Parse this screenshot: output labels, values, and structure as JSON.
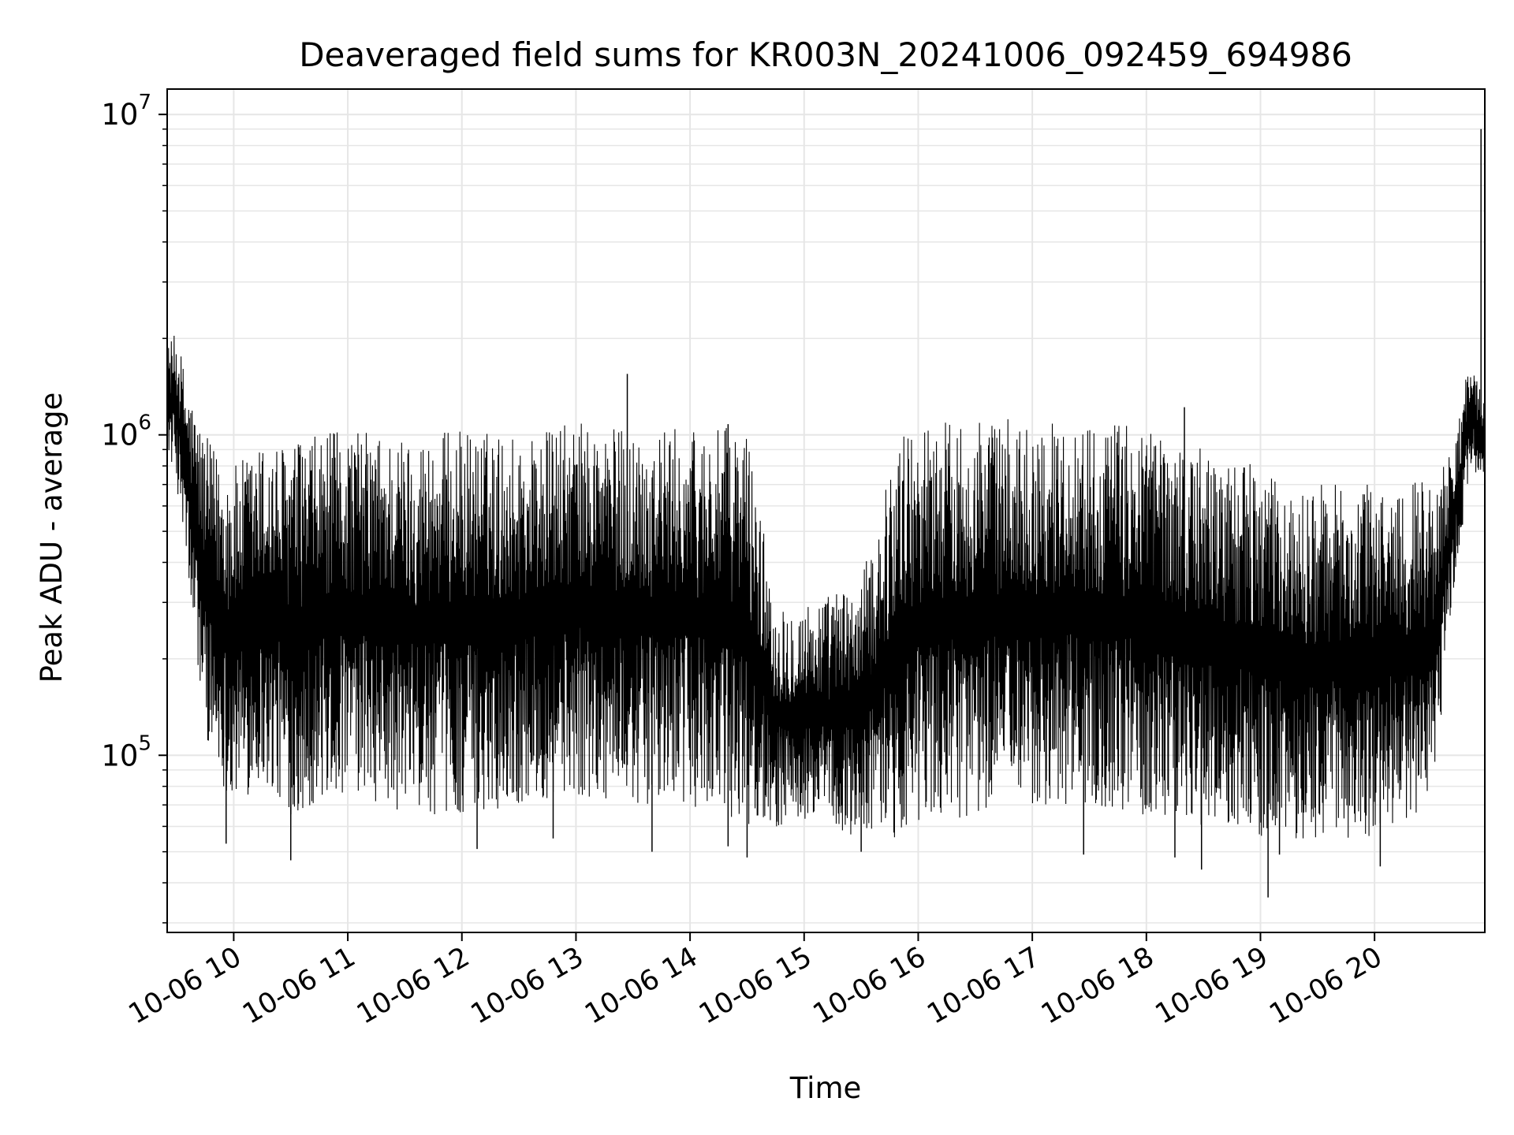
{
  "chart_data": {
    "type": "line",
    "title": "Deaveraged field sums for KR003N_20241006_092459_694986",
    "xlabel": "Time",
    "ylabel": "Peak ADU - average",
    "y_scale": "log",
    "ylim": [
      28000,
      12000000
    ],
    "xlim": [
      "2024-10-06T09:25",
      "2024-10-06T20:58"
    ],
    "grid": true,
    "line_color": "#000000",
    "grid_color": "#e6e6e6",
    "x_ticks": [
      {
        "t": "2024-10-06T10:00",
        "label": "10-06 10"
      },
      {
        "t": "2024-10-06T11:00",
        "label": "10-06 11"
      },
      {
        "t": "2024-10-06T12:00",
        "label": "10-06 12"
      },
      {
        "t": "2024-10-06T13:00",
        "label": "10-06 13"
      },
      {
        "t": "2024-10-06T14:00",
        "label": "10-06 14"
      },
      {
        "t": "2024-10-06T15:00",
        "label": "10-06 15"
      },
      {
        "t": "2024-10-06T16:00",
        "label": "10-06 16"
      },
      {
        "t": "2024-10-06T17:00",
        "label": "10-06 17"
      },
      {
        "t": "2024-10-06T18:00",
        "label": "10-06 18"
      },
      {
        "t": "2024-10-06T19:00",
        "label": "10-06 19"
      },
      {
        "t": "2024-10-06T20:00",
        "label": "10-06 20"
      }
    ],
    "y_ticks": [
      {
        "value": 100000,
        "base": "10",
        "exp": "5"
      },
      {
        "value": 1000000,
        "base": "10",
        "exp": "6"
      },
      {
        "value": 10000000,
        "base": "10",
        "exp": "7"
      }
    ],
    "series": [
      {
        "envelope": [
          {
            "t": "2024-10-06T09:25",
            "low": 900000,
            "high": 1900000
          },
          {
            "t": "2024-10-06T09:30",
            "low": 700000,
            "high": 2100000
          },
          {
            "t": "2024-10-06T09:35",
            "low": 400000,
            "high": 1500000
          },
          {
            "t": "2024-10-06T09:40",
            "low": 200000,
            "high": 1200000
          },
          {
            "t": "2024-10-06T09:45",
            "low": 120000,
            "high": 1000000
          },
          {
            "t": "2024-10-06T09:50",
            "low": 90000,
            "high": 900000
          },
          {
            "t": "2024-10-06T10:00",
            "low": 70000,
            "high": 800000
          },
          {
            "t": "2024-10-06T10:15",
            "low": 80000,
            "high": 950000
          },
          {
            "t": "2024-10-06T10:30",
            "low": 65000,
            "high": 950000
          },
          {
            "t": "2024-10-06T10:45",
            "low": 70000,
            "high": 1000000
          },
          {
            "t": "2024-10-06T11:00",
            "low": 75000,
            "high": 1050000
          },
          {
            "t": "2024-10-06T11:30",
            "low": 65000,
            "high": 1000000
          },
          {
            "t": "2024-10-06T12:00",
            "low": 65000,
            "high": 1050000
          },
          {
            "t": "2024-10-06T12:30",
            "low": 70000,
            "high": 1000000
          },
          {
            "t": "2024-10-06T13:00",
            "low": 75000,
            "high": 1100000
          },
          {
            "t": "2024-10-06T13:30",
            "low": 70000,
            "high": 1050000
          },
          {
            "t": "2024-10-06T14:00",
            "low": 70000,
            "high": 1050000
          },
          {
            "t": "2024-10-06T14:30",
            "low": 60000,
            "high": 1050000
          },
          {
            "t": "2024-10-06T14:45",
            "low": 60000,
            "high": 300000
          },
          {
            "t": "2024-10-06T15:00",
            "low": 60000,
            "high": 300000
          },
          {
            "t": "2024-10-06T15:30",
            "low": 55000,
            "high": 350000
          },
          {
            "t": "2024-10-06T15:50",
            "low": 55000,
            "high": 1000000
          },
          {
            "t": "2024-10-06T16:00",
            "low": 60000,
            "high": 1100000
          },
          {
            "t": "2024-10-06T16:30",
            "low": 65000,
            "high": 1150000
          },
          {
            "t": "2024-10-06T17:00",
            "low": 70000,
            "high": 1100000
          },
          {
            "t": "2024-10-06T17:30",
            "low": 70000,
            "high": 1100000
          },
          {
            "t": "2024-10-06T18:00",
            "low": 65000,
            "high": 1100000
          },
          {
            "t": "2024-10-06T18:30",
            "low": 60000,
            "high": 900000
          },
          {
            "t": "2024-10-06T19:00",
            "low": 55000,
            "high": 800000
          },
          {
            "t": "2024-10-06T19:15",
            "low": 55000,
            "high": 650000
          },
          {
            "t": "2024-10-06T19:30",
            "low": 55000,
            "high": 700000
          },
          {
            "t": "2024-10-06T20:00",
            "low": 55000,
            "high": 700000
          },
          {
            "t": "2024-10-06T20:30",
            "low": 65000,
            "high": 750000
          },
          {
            "t": "2024-10-06T20:40",
            "low": 250000,
            "high": 900000
          },
          {
            "t": "2024-10-06T20:50",
            "low": 800000,
            "high": 1700000
          },
          {
            "t": "2024-10-06T20:58",
            "low": 650000,
            "high": 1300000
          }
        ],
        "spikes": [
          {
            "t": "2024-10-06T09:56",
            "y": 53000
          },
          {
            "t": "2024-10-06T10:30",
            "y": 47000
          },
          {
            "t": "2024-10-06T12:08",
            "y": 51000
          },
          {
            "t": "2024-10-06T12:48",
            "y": 55000
          },
          {
            "t": "2024-10-06T13:27",
            "y": 1550000
          },
          {
            "t": "2024-10-06T13:40",
            "y": 50000
          },
          {
            "t": "2024-10-06T14:20",
            "y": 52000
          },
          {
            "t": "2024-10-06T14:20",
            "y": 1080000
          },
          {
            "t": "2024-10-06T14:30",
            "y": 48000
          },
          {
            "t": "2024-10-06T15:30",
            "y": 50000
          },
          {
            "t": "2024-10-06T17:27",
            "y": 49000
          },
          {
            "t": "2024-10-06T18:15",
            "y": 48000
          },
          {
            "t": "2024-10-06T18:20",
            "y": 1220000
          },
          {
            "t": "2024-10-06T18:29",
            "y": 44000
          },
          {
            "t": "2024-10-06T19:04",
            "y": 36000
          },
          {
            "t": "2024-10-06T19:10",
            "y": 49000
          },
          {
            "t": "2024-10-06T20:03",
            "y": 45000
          },
          {
            "t": "2024-10-06T20:56",
            "y": 9000000
          }
        ]
      }
    ]
  }
}
